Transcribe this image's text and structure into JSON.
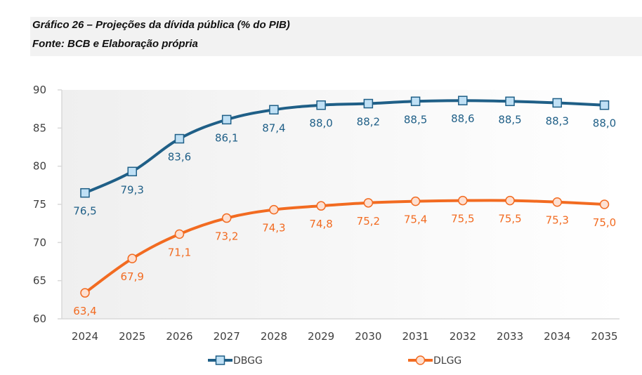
{
  "header": {
    "title": "Gráfico 26 – Projeções da dívida pública (% do PIB)",
    "source": "Fonte: BCB e Elaboração própria"
  },
  "chart_data": {
    "type": "line",
    "title": "Gráfico 26 – Projeções da dívida pública (% do PIB)",
    "subtitle": "Fonte: BCB e Elaboração própria",
    "xlabel": "",
    "ylabel": "",
    "x": [
      "2024",
      "2025",
      "2026",
      "2027",
      "2028",
      "2029",
      "2030",
      "2031",
      "2032",
      "2033",
      "2034",
      "2035"
    ],
    "ylim": [
      60,
      90
    ],
    "yticks": [
      60,
      65,
      70,
      75,
      80,
      85,
      90
    ],
    "grid": false,
    "legend_position": "bottom",
    "series": [
      {
        "name": "DBGG",
        "color": "#1f5f87",
        "marker": "square",
        "marker_fill": "#bfe0f5",
        "label_color": "#1f5f87",
        "label_position": "below",
        "values": [
          76.5,
          79.3,
          83.6,
          86.1,
          87.4,
          88.0,
          88.2,
          88.5,
          88.6,
          88.5,
          88.3,
          88.0
        ],
        "labels": [
          "76,5",
          "79,3",
          "83,6",
          "86,1",
          "87,4",
          "88,0",
          "88,2",
          "88,5",
          "88,6",
          "88,5",
          "88,3",
          "88,0"
        ]
      },
      {
        "name": "DLGG",
        "color": "#f26b21",
        "marker": "circle",
        "marker_fill": "#fde0d2",
        "label_color": "#f26b21",
        "label_position": "below",
        "values": [
          63.4,
          67.9,
          71.1,
          73.2,
          74.3,
          74.8,
          75.2,
          75.4,
          75.5,
          75.5,
          75.3,
          75.0
        ],
        "labels": [
          "63,4",
          "67,9",
          "71,1",
          "73,2",
          "74,3",
          "74,8",
          "75,2",
          "75,4",
          "75,5",
          "75,5",
          "75,3",
          "75,0"
        ]
      }
    ]
  }
}
